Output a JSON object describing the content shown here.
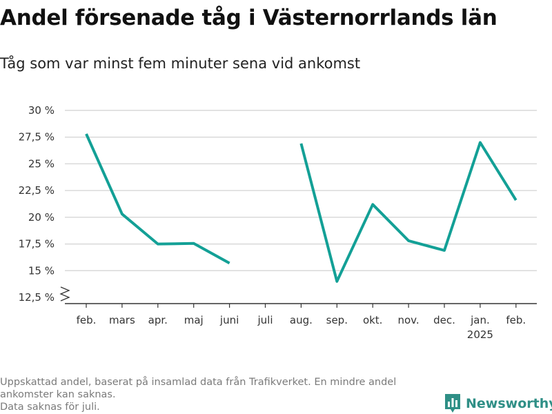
{
  "title": "Andel försenade tåg i Västernorrlands län",
  "subtitle": "Tåg som var minst fem minuter sena vid ankomst",
  "footnote": {
    "line1": "Uppskattad andel, baserat på insamlad data från Trafikverket. En mindre andel ankomster kan saknas.",
    "line2": "Data saknas för juli."
  },
  "brand": {
    "name": "Newsworthy",
    "color": "#2f8f86"
  },
  "colors": {
    "line": "#13a096",
    "grid": "#d9d9d9",
    "axis": "#333333"
  },
  "chart_data": {
    "type": "line",
    "title": "Andel försenade tåg i Västernorrlands län",
    "subtitle": "Tåg som var minst fem minuter sena vid ankomst",
    "categories": [
      "feb.",
      "mars",
      "apr.",
      "maj",
      "juni",
      "juli",
      "aug.",
      "sep.",
      "okt.",
      "nov.",
      "dec.",
      "jan.",
      "feb."
    ],
    "year_label": "2025",
    "values": [
      27.8,
      20.3,
      17.5,
      17.55,
      15.7,
      null,
      26.9,
      14.0,
      21.2,
      17.8,
      16.9,
      27.0,
      21.6
    ],
    "yticks": [
      12.5,
      15,
      17.5,
      20,
      22.5,
      25,
      27.5,
      30
    ],
    "ytick_labels": [
      "12,5 %",
      "15 %",
      "17,5 %",
      "20 %",
      "22,5 %",
      "25 %",
      "27,5 %",
      "30 %"
    ],
    "ylim": [
      12.5,
      30
    ],
    "grid": true,
    "broken_y_axis": true
  }
}
